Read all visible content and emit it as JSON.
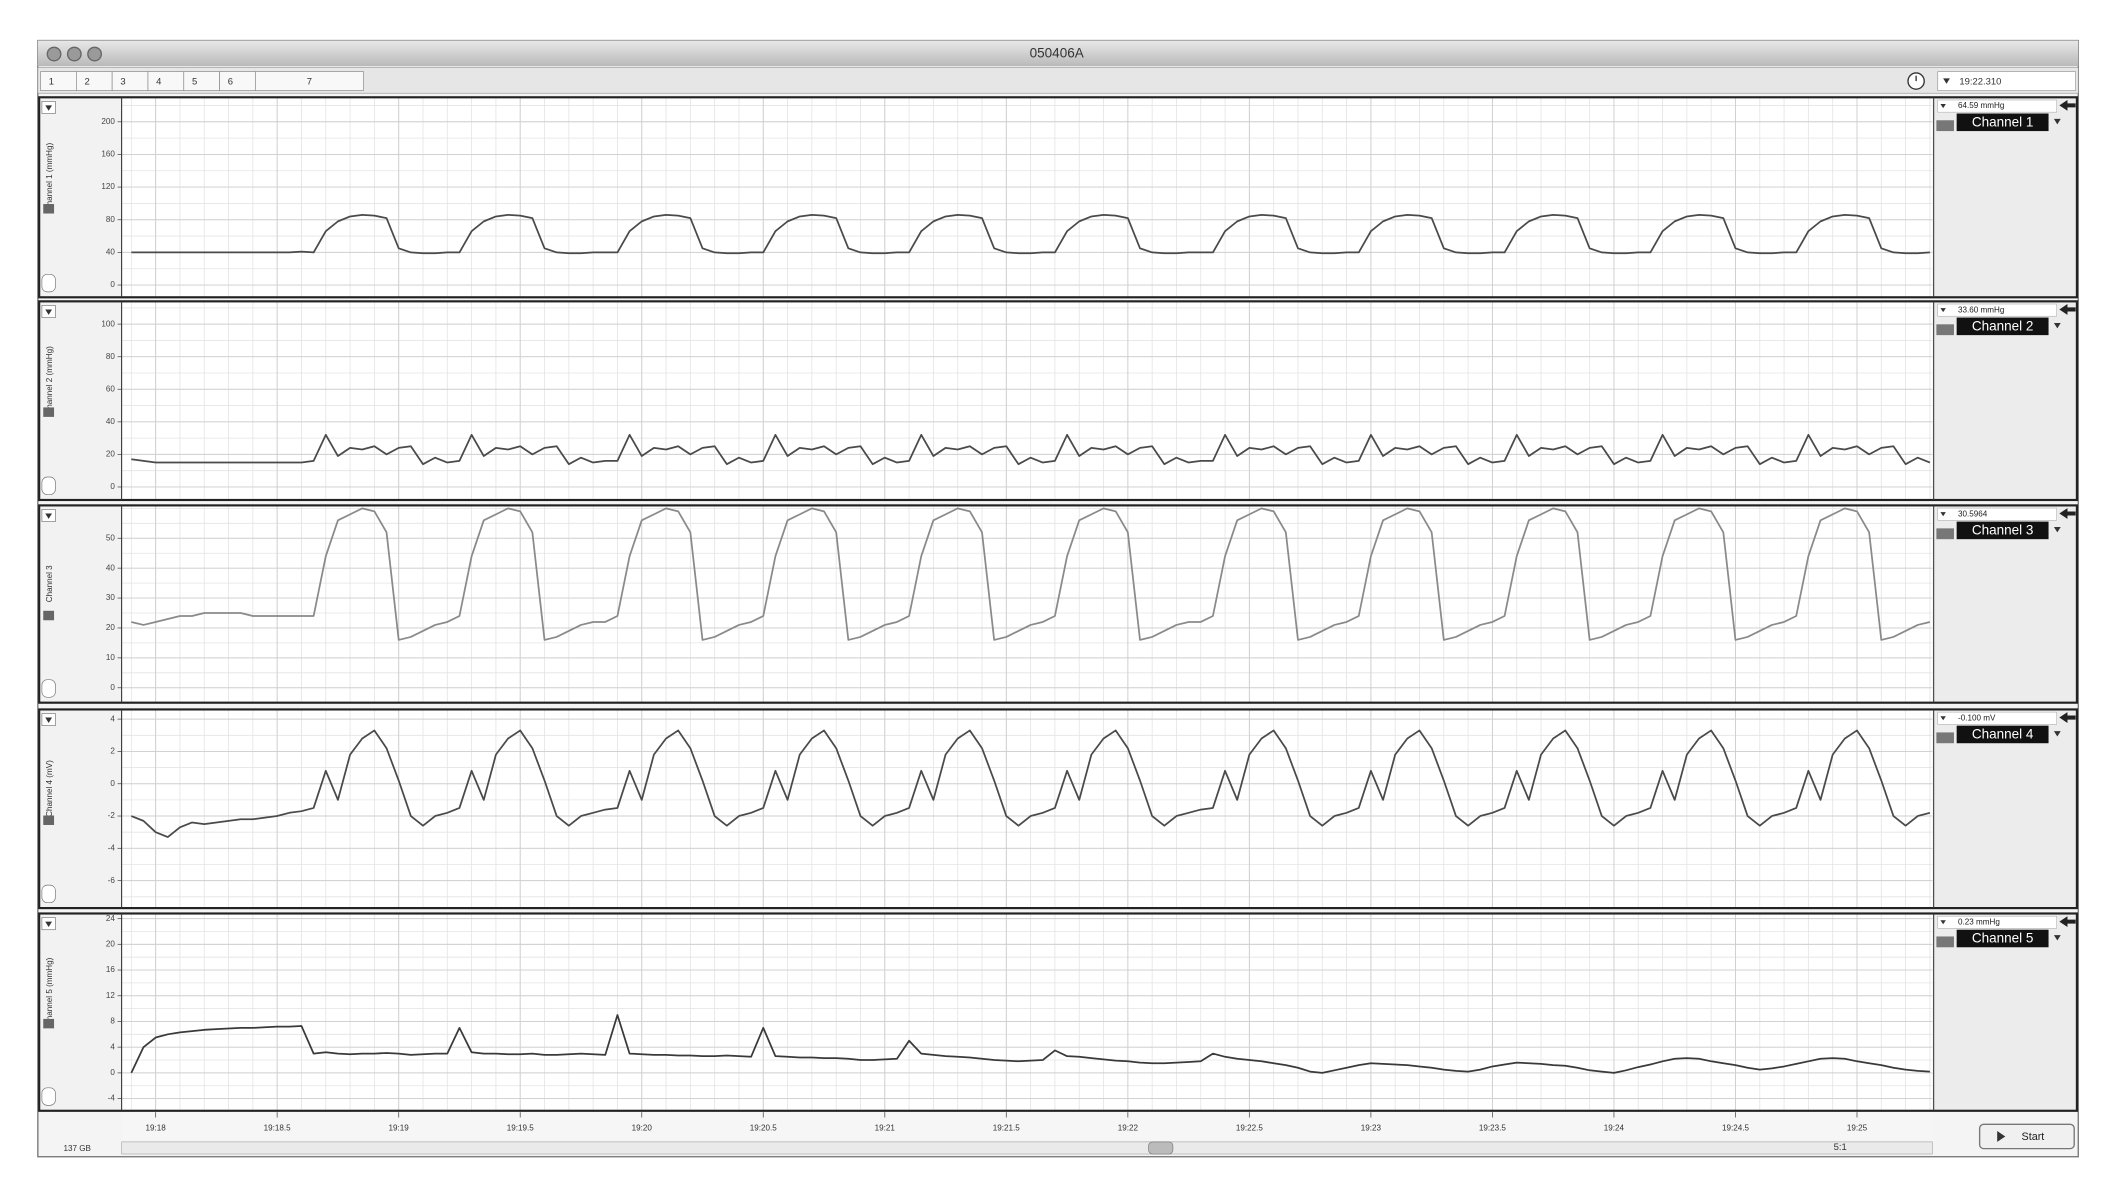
{
  "window_title": "050406A",
  "tabs": [
    "1",
    "2",
    "3",
    "4",
    "5",
    "6",
    "7"
  ],
  "cursor_time": "19:22.310",
  "zoom": "5:1",
  "disk": "137 GB",
  "start_button": "Start",
  "chart_data": {
    "type": "line",
    "grid": true,
    "xlim": [
      1157.86,
      1165.31
    ],
    "xticks": [
      {
        "value": 1158,
        "label": "19:18"
      },
      {
        "value": 1158.5,
        "label": "19:18.5"
      },
      {
        "value": 1159,
        "label": "19:19"
      },
      {
        "value": 1159.5,
        "label": "19:19.5"
      },
      {
        "value": 1160,
        "label": "19:20"
      },
      {
        "value": 1160.5,
        "label": "19:20.5"
      },
      {
        "value": 1161,
        "label": "19:21"
      },
      {
        "value": 1161.5,
        "label": "19:21.5"
      },
      {
        "value": 1162,
        "label": "19:22"
      },
      {
        "value": 1162.5,
        "label": "19:22.5"
      },
      {
        "value": 1163,
        "label": "19:23"
      },
      {
        "value": 1163.5,
        "label": "19:23.5"
      },
      {
        "value": 1164,
        "label": "19:24"
      },
      {
        "value": 1164.5,
        "label": "19:24.5"
      },
      {
        "value": 1165,
        "label": "19:25"
      }
    ],
    "x": [
      1157.9,
      1157.95,
      1158,
      1158.05,
      1158.1,
      1158.15,
      1158.2,
      1158.25,
      1158.3,
      1158.35,
      1158.4,
      1158.45,
      1158.5,
      1158.55,
      1158.6,
      1158.65,
      1158.7,
      1158.75,
      1158.8,
      1158.85,
      1158.9,
      1158.95,
      1159,
      1159.05,
      1159.1,
      1159.15,
      1159.2,
      1159.25,
      1159.3,
      1159.35,
      1159.4,
      1159.45,
      1159.5,
      1159.55,
      1159.6,
      1159.65,
      1159.7,
      1159.75,
      1159.8,
      1159.85,
      1159.9,
      1159.95,
      1160,
      1160.05,
      1160.1,
      1160.15,
      1160.2,
      1160.25,
      1160.3,
      1160.35,
      1160.4,
      1160.45,
      1160.5,
      1160.55,
      1160.6,
      1160.65,
      1160.7,
      1160.75,
      1160.8,
      1160.85,
      1160.9,
      1160.95,
      1161,
      1161.05,
      1161.1,
      1161.15,
      1161.2,
      1161.25,
      1161.3,
      1161.35,
      1161.4,
      1161.45,
      1161.5,
      1161.55,
      1161.6,
      1161.65,
      1161.7,
      1161.75,
      1161.8,
      1161.85,
      1161.9,
      1161.95,
      1162,
      1162.05,
      1162.1,
      1162.15,
      1162.2,
      1162.25,
      1162.3,
      1162.35,
      1162.4,
      1162.45,
      1162.5,
      1162.55,
      1162.6,
      1162.65,
      1162.7,
      1162.75,
      1162.8,
      1162.85,
      1162.9,
      1162.95,
      1163,
      1163.05,
      1163.1,
      1163.15,
      1163.2,
      1163.25,
      1163.3,
      1163.35,
      1163.4,
      1163.45,
      1163.5,
      1163.55,
      1163.6,
      1163.65,
      1163.7,
      1163.75,
      1163.8,
      1163.85,
      1163.9,
      1163.95,
      1164,
      1164.05,
      1164.1,
      1164.15,
      1164.2,
      1164.25,
      1164.3,
      1164.35,
      1164.4,
      1164.45,
      1164.5,
      1164.55,
      1164.6,
      1164.65,
      1164.7,
      1164.75,
      1164.8,
      1164.85,
      1164.9,
      1164.95,
      1165,
      1165.05,
      1165.1,
      1165.15,
      1165.2,
      1165.25,
      1165.3
    ],
    "panels": [
      {
        "name": "Channel 1",
        "ylabel": "Channel 1 (mmHg)",
        "readout": "64.59 mmHg",
        "color": "#4a4a4a",
        "ylim": [
          -15,
          230
        ],
        "yticks": [
          0,
          40,
          80,
          120,
          160,
          200
        ],
        "values": [
          40,
          40,
          40,
          40,
          40,
          40,
          40,
          40,
          40,
          40,
          40,
          40,
          40,
          40,
          41,
          40,
          66,
          78,
          84,
          86,
          85,
          82,
          45,
          40,
          39,
          39,
          40,
          40,
          66,
          78,
          84,
          86,
          85,
          82,
          45,
          40,
          39,
          39,
          40,
          40,
          40,
          66,
          78,
          84,
          86,
          85,
          82,
          45,
          40,
          39,
          39,
          40,
          40,
          66,
          78,
          84,
          86,
          85,
          82,
          45,
          40,
          39,
          39,
          40,
          40,
          66,
          78,
          84,
          86,
          85,
          82,
          45,
          40,
          39,
          39,
          40,
          40,
          66,
          78,
          84,
          86,
          85,
          82,
          45,
          40,
          39,
          39,
          40,
          40,
          40,
          66,
          78,
          84,
          86,
          85,
          82,
          45,
          40,
          39,
          39,
          40,
          40,
          66,
          78,
          84,
          86,
          85,
          82,
          45,
          40,
          39,
          39,
          40,
          40,
          66,
          78,
          84,
          86,
          85,
          82,
          45,
          40,
          39,
          39,
          40,
          40,
          66,
          78,
          84,
          86,
          85,
          82,
          45,
          40,
          39,
          39,
          40,
          40,
          66,
          78,
          84,
          86,
          85,
          82,
          45,
          40,
          39,
          39,
          40
        ]
      },
      {
        "name": "Channel 2",
        "ylabel": "Channel 2 (mmHg)",
        "readout": "33.60 mmHg",
        "color": "#4a4a4a",
        "ylim": [
          -8,
          114
        ],
        "yticks": [
          0,
          20,
          40,
          60,
          80,
          100
        ],
        "values": [
          17,
          16,
          15,
          15,
          15,
          15,
          15,
          15,
          15,
          15,
          15,
          15,
          15,
          15,
          15,
          16,
          32,
          19,
          24,
          23,
          25,
          20,
          24,
          25,
          14,
          18,
          15,
          16,
          32,
          19,
          24,
          23,
          25,
          20,
          24,
          25,
          14,
          18,
          15,
          16,
          16,
          32,
          19,
          24,
          23,
          25,
          20,
          24,
          25,
          14,
          18,
          15,
          16,
          32,
          19,
          24,
          23,
          25,
          20,
          24,
          25,
          14,
          18,
          15,
          16,
          32,
          19,
          24,
          23,
          25,
          20,
          24,
          25,
          14,
          18,
          15,
          16,
          32,
          19,
          24,
          23,
          25,
          20,
          24,
          25,
          14,
          18,
          15,
          16,
          16,
          32,
          19,
          24,
          23,
          25,
          20,
          24,
          25,
          14,
          18,
          15,
          16,
          32,
          19,
          24,
          23,
          25,
          20,
          24,
          25,
          14,
          18,
          15,
          16,
          32,
          19,
          24,
          23,
          25,
          20,
          24,
          25,
          14,
          18,
          15,
          16,
          32,
          19,
          24,
          23,
          25,
          20,
          24,
          25,
          14,
          18,
          15,
          16,
          32,
          19,
          24,
          23,
          25,
          20,
          24,
          25,
          14,
          18,
          15
        ]
      },
      {
        "name": "Channel 3",
        "ylabel": "Channel 3",
        "readout": "30.5964",
        "color": "#8a8a8a",
        "ylim": [
          -5,
          61
        ],
        "yticks": [
          0,
          10,
          20,
          30,
          40,
          50
        ],
        "values": [
          22,
          21,
          22,
          23,
          24,
          24,
          25,
          25,
          25,
          25,
          24,
          24,
          24,
          24,
          24,
          24,
          44,
          56,
          58,
          60,
          59,
          52,
          16,
          17,
          19,
          21,
          22,
          24,
          44,
          56,
          58,
          60,
          59,
          52,
          16,
          17,
          19,
          21,
          22,
          22,
          24,
          44,
          56,
          58,
          60,
          59,
          52,
          16,
          17,
          19,
          21,
          22,
          24,
          44,
          56,
          58,
          60,
          59,
          52,
          16,
          17,
          19,
          21,
          22,
          24,
          44,
          56,
          58,
          60,
          59,
          52,
          16,
          17,
          19,
          21,
          22,
          24,
          44,
          56,
          58,
          60,
          59,
          52,
          16,
          17,
          19,
          21,
          22,
          22,
          24,
          44,
          56,
          58,
          60,
          59,
          52,
          16,
          17,
          19,
          21,
          22,
          24,
          44,
          56,
          58,
          60,
          59,
          52,
          16,
          17,
          19,
          21,
          22,
          24,
          44,
          56,
          58,
          60,
          59,
          52,
          16,
          17,
          19,
          21,
          22,
          24,
          44,
          56,
          58,
          60,
          59,
          52,
          16,
          17,
          19,
          21,
          22,
          24,
          44,
          56,
          58,
          60,
          59,
          52,
          16,
          17,
          19,
          21,
          22
        ]
      },
      {
        "name": "Channel 4",
        "ylabel": "Channel 4 (mV)",
        "readout": "-0.100 mV",
        "color": "#4a4a4a",
        "ylim": [
          -7.7,
          4.6
        ],
        "yticks": [
          -6,
          -4,
          -2,
          0,
          2,
          4
        ],
        "values": [
          -2,
          -2.3,
          -3,
          -3.3,
          -2.7,
          -2.4,
          -2.5,
          -2.4,
          -2.3,
          -2.2,
          -2.2,
          -2.1,
          -2,
          -1.8,
          -1.7,
          -1.5,
          0.8,
          -1,
          1.8,
          2.8,
          3.3,
          2.2,
          0.2,
          -2,
          -2.6,
          -2,
          -1.8,
          -1.5,
          0.8,
          -1,
          1.8,
          2.8,
          3.3,
          2.2,
          0.2,
          -2,
          -2.6,
          -2,
          -1.8,
          -1.6,
          -1.5,
          0.8,
          -1,
          1.8,
          2.8,
          3.3,
          2.2,
          0.2,
          -2,
          -2.6,
          -2,
          -1.8,
          -1.5,
          0.8,
          -1,
          1.8,
          2.8,
          3.3,
          2.2,
          0.2,
          -2,
          -2.6,
          -2,
          -1.8,
          -1.5,
          0.8,
          -1,
          1.8,
          2.8,
          3.3,
          2.2,
          0.2,
          -2,
          -2.6,
          -2,
          -1.8,
          -1.5,
          0.8,
          -1,
          1.8,
          2.8,
          3.3,
          2.2,
          0.2,
          -2,
          -2.6,
          -2,
          -1.8,
          -1.6,
          -1.5,
          0.8,
          -1,
          1.8,
          2.8,
          3.3,
          2.2,
          0.2,
          -2,
          -2.6,
          -2,
          -1.8,
          -1.5,
          0.8,
          -1,
          1.8,
          2.8,
          3.3,
          2.2,
          0.2,
          -2,
          -2.6,
          -2,
          -1.8,
          -1.5,
          0.8,
          -1,
          1.8,
          2.8,
          3.3,
          2.2,
          0.2,
          -2,
          -2.6,
          -2,
          -1.8,
          -1.5,
          0.8,
          -1,
          1.8,
          2.8,
          3.3,
          2.2,
          0.2,
          -2,
          -2.6,
          -2,
          -1.8,
          -1.5,
          0.8,
          -1,
          1.8,
          2.8,
          3.3,
          2.2,
          0.2,
          -2,
          -2.6,
          -2,
          -1.8
        ]
      },
      {
        "name": "Channel 5",
        "ylabel": "Channel 5 (mmHg)",
        "readout": "0.23 mmHg",
        "color": "#3a3a3a",
        "ylim": [
          -5.9,
          24.8
        ],
        "yticks": [
          -4,
          0,
          4,
          8,
          12,
          16,
          20,
          24
        ],
        "values": [
          0,
          4,
          5.5,
          6,
          6.3,
          6.5,
          6.7,
          6.8,
          6.9,
          7,
          7,
          7.1,
          7.2,
          7.2,
          7.3,
          3,
          3.2,
          3,
          2.9,
          3,
          3,
          3.1,
          3,
          2.8,
          2.9,
          3,
          3,
          7,
          3.2,
          3,
          3,
          2.9,
          2.9,
          3,
          2.8,
          2.8,
          2.9,
          3,
          2.9,
          2.8,
          9,
          3,
          2.9,
          2.8,
          2.8,
          2.7,
          2.7,
          2.6,
          2.6,
          2.7,
          2.6,
          2.5,
          7,
          2.6,
          2.5,
          2.4,
          2.4,
          2.3,
          2.3,
          2.2,
          2,
          2,
          2.1,
          2.2,
          5,
          3,
          2.8,
          2.6,
          2.5,
          2.4,
          2.2,
          2,
          1.9,
          1.8,
          1.9,
          2,
          3.5,
          2.6,
          2.5,
          2.3,
          2.1,
          1.9,
          1.8,
          1.6,
          1.5,
          1.5,
          1.6,
          1.7,
          1.8,
          3,
          2.5,
          2.2,
          2,
          1.8,
          1.5,
          1.2,
          0.8,
          0.2,
          0,
          0.4,
          0.8,
          1.2,
          1.5,
          1.4,
          1.3,
          1.2,
          1,
          0.8,
          0.5,
          0.3,
          0.2,
          0.5,
          1,
          1.3,
          1.6,
          1.5,
          1.4,
          1.2,
          1.1,
          0.8,
          0.4,
          0.2,
          0,
          0.4,
          0.9,
          1.3,
          1.8,
          2.2,
          2.3,
          2.2,
          1.8,
          1.5,
          1.2,
          0.8,
          0.5,
          0.7,
          1,
          1.4,
          1.8,
          2.2,
          2.3,
          2.2,
          1.8,
          1.5,
          1.2,
          0.8,
          0.5,
          0.3,
          0.2
        ]
      }
    ]
  }
}
